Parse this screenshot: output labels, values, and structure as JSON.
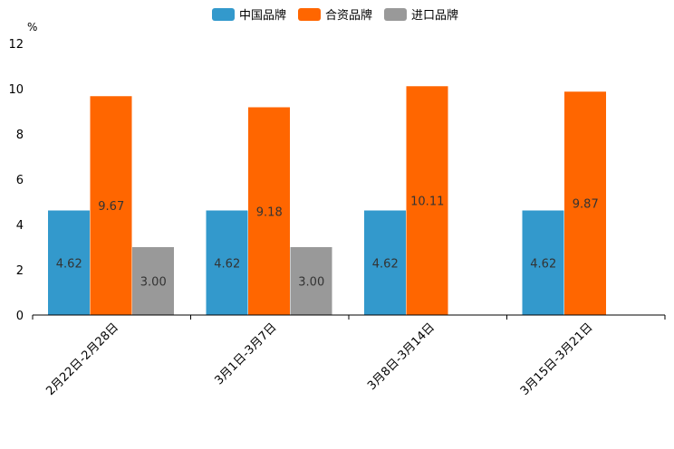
{
  "chart_data": {
    "type": "bar",
    "ylabel": "%",
    "ylim": [
      0,
      12
    ],
    "yticks": [
      0,
      2,
      4,
      6,
      8,
      10,
      12
    ],
    "categories": [
      "2月22日-2月28日",
      "3月1日-3月7日",
      "3月8日-3月14日",
      "3月15日-3月21日"
    ],
    "series": [
      {
        "name": "中国品牌",
        "color": "#3399CC",
        "values": [
          4.62,
          4.62,
          4.62,
          4.62
        ],
        "labels": [
          "4.62",
          "4.62",
          "4.62",
          "4.62"
        ]
      },
      {
        "name": "合资品牌",
        "color": "#FF6600",
        "values": [
          9.67,
          9.18,
          10.11,
          9.87
        ],
        "labels": [
          "9.67",
          "9.18",
          "10.11",
          "9.87"
        ]
      },
      {
        "name": "进口品牌",
        "color": "#999999",
        "values": [
          3.0,
          3.0,
          null,
          null
        ],
        "labels": [
          "3.00",
          "3.00",
          null,
          null
        ]
      }
    ],
    "legend": "top-center",
    "grid": false
  }
}
